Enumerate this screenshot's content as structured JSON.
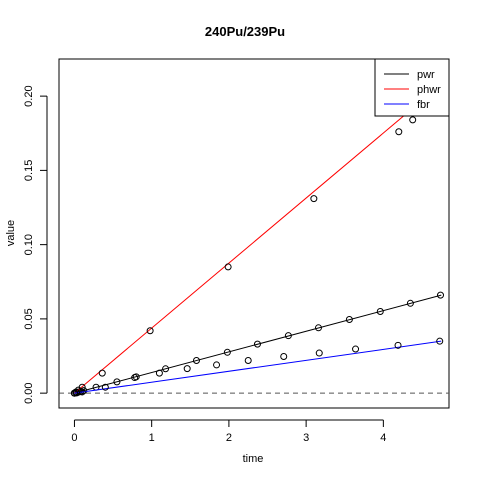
{
  "chart_data": {
    "type": "line",
    "title": "240Pu/239Pu",
    "xlabel": "time",
    "ylabel": "value",
    "xlim": [
      -0.2,
      4.85
    ],
    "ylim": [
      -0.01,
      0.225
    ],
    "x_ticks": [
      0,
      1,
      2,
      3,
      4
    ],
    "x_tick_labels": [
      "0",
      "1",
      "2",
      "3",
      "4"
    ],
    "y_ticks": [
      0.0,
      0.05,
      0.1,
      0.15,
      0.2
    ],
    "y_tick_labels": [
      "0.00",
      "0.05",
      "0.10",
      "0.15",
      "0.20"
    ],
    "reference_line": {
      "y": 0,
      "style": "dashed"
    },
    "legend": {
      "position": "top-right"
    },
    "series": [
      {
        "name": "pwr",
        "color": "#000000",
        "line": [
          [
            0,
            0
          ],
          [
            4.75,
            0.066
          ]
        ],
        "points": [
          [
            0.0,
            0.0
          ],
          [
            0.02,
            0.0003
          ],
          [
            0.05,
            0.0007
          ],
          [
            0.08,
            0.001
          ],
          [
            0.12,
            0.0017
          ],
          [
            0.28,
            0.004
          ],
          [
            0.55,
            0.0076
          ],
          [
            0.8,
            0.011
          ],
          [
            1.18,
            0.0164
          ],
          [
            1.58,
            0.022
          ],
          [
            1.98,
            0.0275
          ],
          [
            2.37,
            0.033
          ],
          [
            2.77,
            0.0387
          ],
          [
            3.16,
            0.044
          ],
          [
            3.56,
            0.0496
          ],
          [
            3.96,
            0.055
          ],
          [
            4.35,
            0.0605
          ],
          [
            4.74,
            0.066
          ]
        ]
      },
      {
        "name": "phwr",
        "color": "#ff0000",
        "line": [
          [
            0,
            0
          ],
          [
            4.75,
            0.208
          ]
        ],
        "points": [
          [
            0.0,
            0.0
          ],
          [
            0.02,
            0.0008
          ],
          [
            0.05,
            0.002
          ],
          [
            0.1,
            0.004
          ],
          [
            0.36,
            0.0135
          ],
          [
            0.98,
            0.042
          ],
          [
            1.99,
            0.085
          ],
          [
            3.1,
            0.131
          ],
          [
            4.2,
            0.176
          ],
          [
            4.38,
            0.184
          ]
        ]
      },
      {
        "name": "fbr",
        "color": "#0000ff",
        "line": [
          [
            0,
            0
          ],
          [
            4.75,
            0.035
          ]
        ],
        "points": [
          [
            0.0,
            0.0
          ],
          [
            0.03,
            0.0002
          ],
          [
            0.1,
            0.0008
          ],
          [
            0.4,
            0.004
          ],
          [
            0.78,
            0.0105
          ],
          [
            1.1,
            0.0135
          ],
          [
            1.46,
            0.0165
          ],
          [
            1.84,
            0.019
          ],
          [
            2.25,
            0.022
          ],
          [
            2.71,
            0.0247
          ],
          [
            3.17,
            0.027
          ],
          [
            3.64,
            0.0297
          ],
          [
            4.19,
            0.0322
          ],
          [
            4.73,
            0.035
          ]
        ]
      }
    ]
  }
}
